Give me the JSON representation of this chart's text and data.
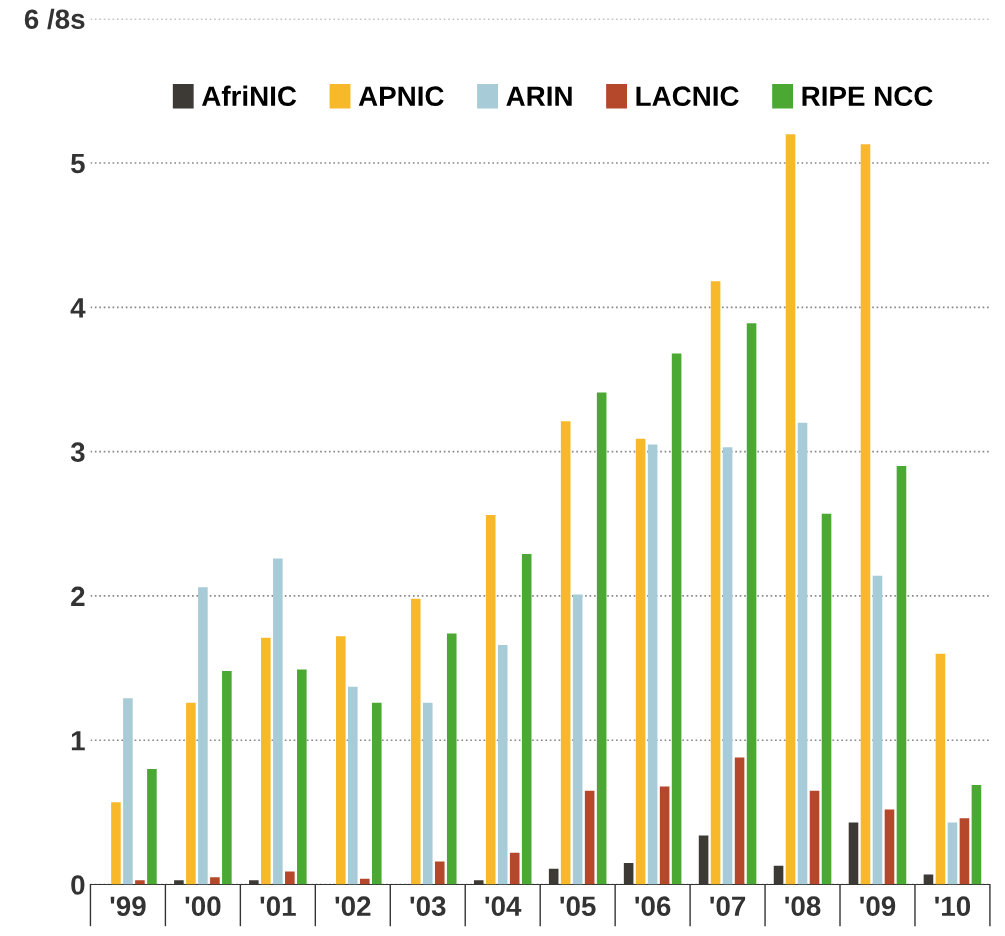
{
  "chart_data": {
    "type": "bar",
    "categories": [
      "'99",
      "'00",
      "'01",
      "'02",
      "'03",
      "'04",
      "'05",
      "'06",
      "'07",
      "'08",
      "'09",
      "'10"
    ],
    "series": [
      {
        "name": "AfriNIC",
        "color": "#3d3935",
        "values": [
          0.0,
          0.03,
          0.03,
          null,
          null,
          0.03,
          0.11,
          0.15,
          0.34,
          0.13,
          0.43,
          0.07
        ]
      },
      {
        "name": "APNIC",
        "color": "#f7b82a",
        "values": [
          0.57,
          1.26,
          1.71,
          1.72,
          1.98,
          2.56,
          3.21,
          3.09,
          4.18,
          5.2,
          5.13,
          1.6
        ]
      },
      {
        "name": "ARIN",
        "color": "#a8cbd8",
        "values": [
          1.29,
          2.06,
          2.26,
          1.37,
          1.26,
          1.66,
          2.01,
          3.05,
          3.03,
          3.2,
          2.14,
          0.43
        ]
      },
      {
        "name": "LACNIC",
        "color": "#b5472a",
        "values": [
          0.03,
          0.05,
          0.09,
          0.04,
          0.16,
          0.22,
          0.65,
          0.68,
          0.88,
          0.65,
          0.52,
          0.46
        ]
      },
      {
        "name": "RIPE NCC",
        "color": "#4aa833",
        "values": [
          0.8,
          1.48,
          1.49,
          1.26,
          1.74,
          2.29,
          3.41,
          3.68,
          3.89,
          2.57,
          2.9,
          0.69
        ]
      }
    ],
    "ylim": [
      0,
      6
    ],
    "yticks": [
      0,
      1,
      2,
      3,
      4,
      5,
      {
        "value": 6,
        "label": "6 /8s"
      }
    ],
    "grid": "y",
    "legend": "top left"
  }
}
